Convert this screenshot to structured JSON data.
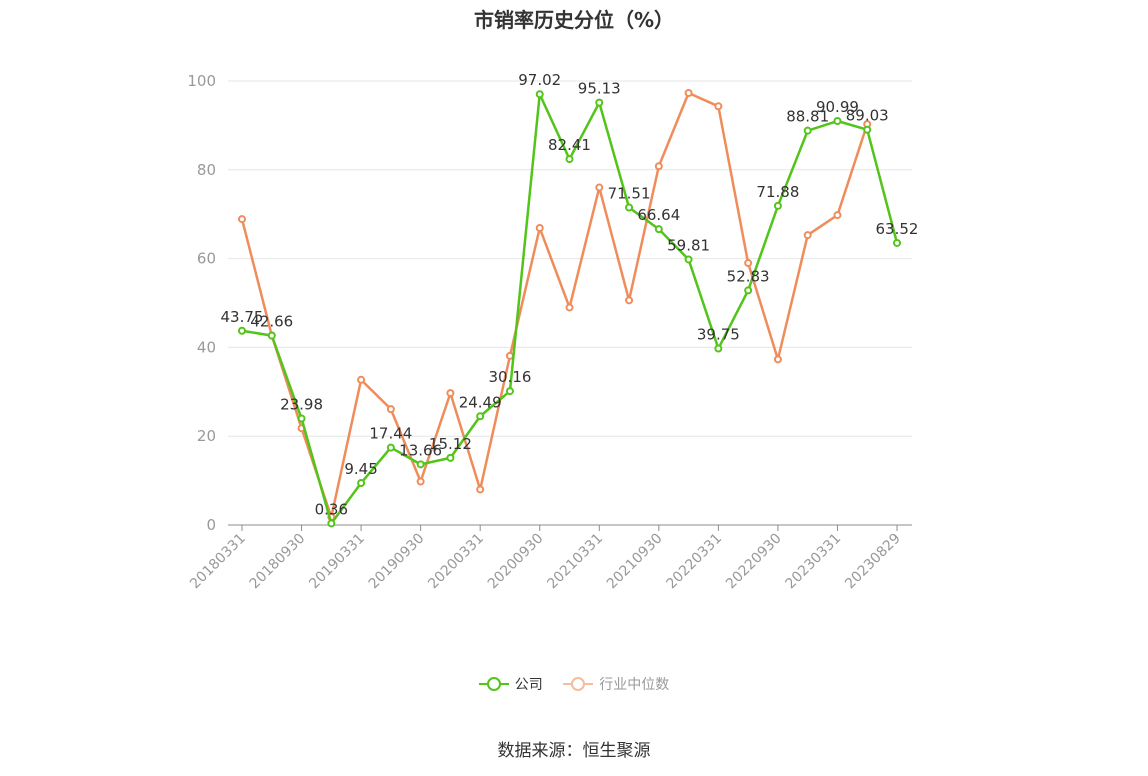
{
  "chart_data": {
    "type": "line",
    "title": "市销率历史分位（%）",
    "xlabel": "",
    "ylabel": "",
    "ylim": [
      0,
      100
    ],
    "yticks": [
      0,
      20,
      40,
      60,
      80,
      100
    ],
    "grid": true,
    "legend_position": "bottom",
    "tick_labels": [
      "20180331",
      "20180930",
      "20190331",
      "20190930",
      "20200331",
      "20200930",
      "20210331",
      "20210930",
      "20220331",
      "20220930",
      "20230331",
      "20230829"
    ],
    "x": [
      "20180331",
      "20180630",
      "20180930",
      "20181231",
      "20190331",
      "20190630",
      "20190930",
      "20191231",
      "20200331",
      "20200630",
      "20200930",
      "20201231",
      "20210331",
      "20210630",
      "20210930",
      "20211231",
      "20220331",
      "20220630",
      "20220930",
      "20221231",
      "20230331",
      "20230630",
      "20230829"
    ],
    "series": [
      {
        "name": "公司",
        "color": "#52c41a",
        "values": [
          43.75,
          42.66,
          23.98,
          0.36,
          9.45,
          17.44,
          13.66,
          15.12,
          24.49,
          30.16,
          97.02,
          82.41,
          95.13,
          71.51,
          66.64,
          59.81,
          39.75,
          52.83,
          71.88,
          88.81,
          90.99,
          89.03,
          63.52
        ]
      },
      {
        "name": "行业中位数",
        "color": "#f08c5a",
        "legend_color": "#f6bca0",
        "values": [
          68.9,
          42.7,
          21.8,
          1.8,
          32.7,
          26.1,
          9.8,
          29.7,
          8.0,
          38.1,
          66.9,
          49.0,
          76.0,
          50.6,
          80.8,
          97.3,
          94.3,
          59.0,
          37.3,
          65.3,
          69.8,
          90.3,
          null
        ]
      }
    ]
  },
  "source": "数据来源：恒生聚源"
}
